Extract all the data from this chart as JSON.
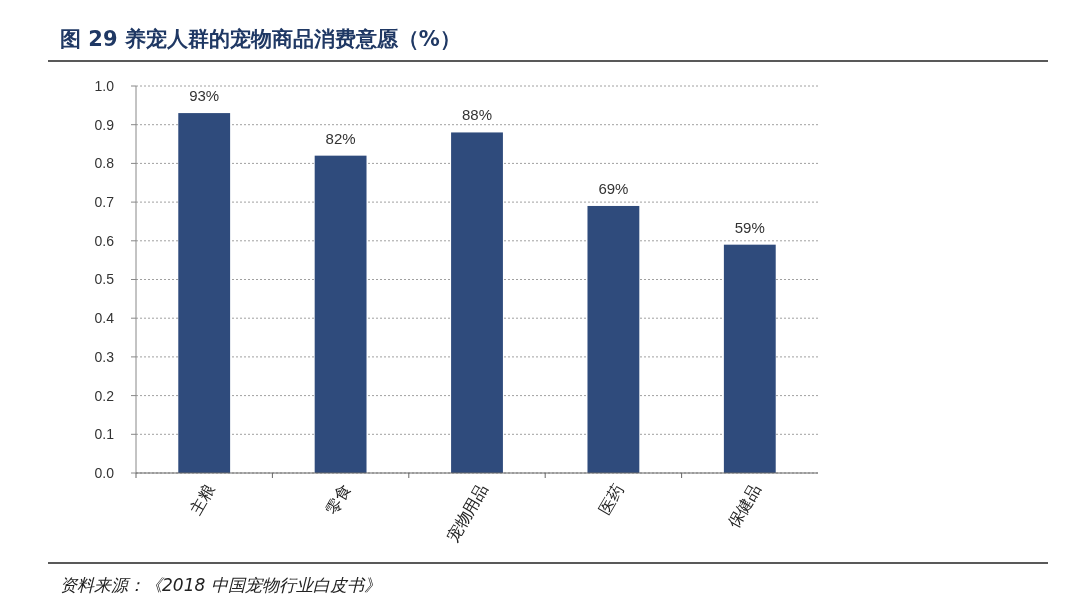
{
  "chart_data": {
    "type": "bar",
    "title": "图 29  养宠人群的宠物商品消费意愿（%）",
    "categories": [
      "主粮",
      "零食",
      "宠物用品",
      "医药",
      "保健品"
    ],
    "values": [
      0.93,
      0.82,
      0.88,
      0.69,
      0.59
    ],
    "value_labels": [
      "93%",
      "82%",
      "88%",
      "69%",
      "59%"
    ],
    "color": "#2f4b7c",
    "ylim": [
      0,
      1
    ],
    "yticks": [
      {
        "value": 0,
        "label": "0.0"
      },
      {
        "value": 0.1,
        "label": "0.1"
      },
      {
        "value": 0.2,
        "label": "0.2"
      },
      {
        "value": 0.3,
        "label": "0.3"
      },
      {
        "value": 0.4,
        "label": "0.4"
      },
      {
        "value": 0.5,
        "label": "0.5"
      },
      {
        "value": 0.6,
        "label": "0.6"
      },
      {
        "value": 0.7,
        "label": "0.7"
      },
      {
        "value": 0.8,
        "label": "0.8"
      },
      {
        "value": 0.9,
        "label": "0.9"
      },
      {
        "value": 1,
        "label": "1.0"
      }
    ],
    "grid": "y",
    "annotations": [
      "资料来源：《2018 中国宠物行业白皮书》"
    ]
  }
}
